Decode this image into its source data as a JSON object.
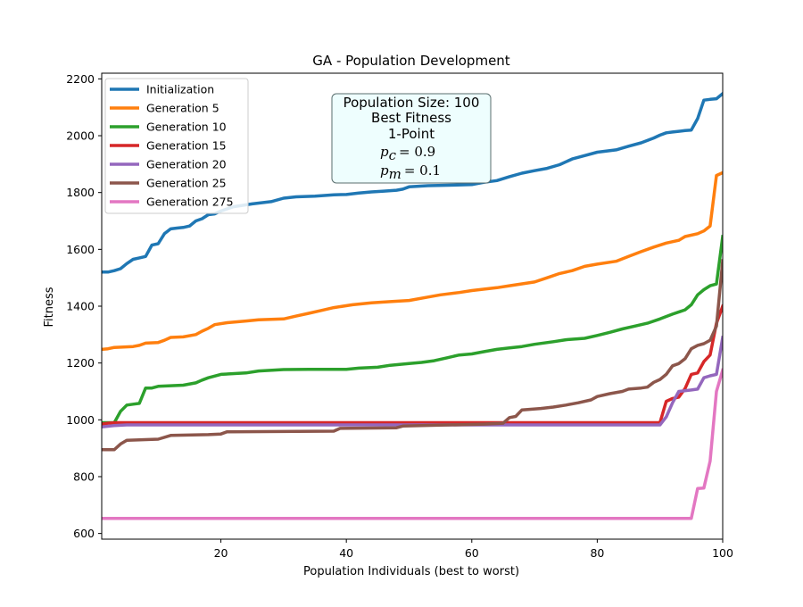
{
  "chart_data": {
    "type": "line",
    "title": "GA - Population Development",
    "xlabel": "Population Individuals (best to worst)",
    "ylabel": "Fitness",
    "xlim": [
      1,
      100
    ],
    "ylim": [
      580,
      2220
    ],
    "xticks": [
      20,
      40,
      60,
      80,
      100
    ],
    "yticks": [
      600,
      800,
      1000,
      1200,
      1400,
      1600,
      1800,
      2000,
      2200
    ],
    "grid": false,
    "legend_position": "upper-left",
    "annotation": {
      "lines": [
        "Population Size: 100",
        "Best Fitness",
        "1-Point"
      ],
      "pc_label": "p",
      "pc_sub": "c",
      "pc_value": "= 0.9",
      "pm_label": "p",
      "pm_sub": "m",
      "pm_value": "= 0.1",
      "background": "#eefefe"
    },
    "series": [
      {
        "name": "Initialization",
        "color": "#1f77b4",
        "points": [
          [
            1,
            1520
          ],
          [
            2,
            1520
          ],
          [
            3,
            1525
          ],
          [
            4,
            1532
          ],
          [
            5,
            1550
          ],
          [
            6,
            1565
          ],
          [
            7,
            1570
          ],
          [
            8,
            1575
          ],
          [
            9,
            1615
          ],
          [
            10,
            1620
          ],
          [
            11,
            1655
          ],
          [
            12,
            1672
          ],
          [
            13,
            1675
          ],
          [
            14,
            1677
          ],
          [
            15,
            1682
          ],
          [
            16,
            1700
          ],
          [
            17,
            1708
          ],
          [
            18,
            1722
          ],
          [
            19,
            1725
          ],
          [
            20,
            1735
          ],
          [
            22,
            1750
          ],
          [
            25,
            1760
          ],
          [
            28,
            1768
          ],
          [
            30,
            1780
          ],
          [
            32,
            1785
          ],
          [
            35,
            1787
          ],
          [
            38,
            1792
          ],
          [
            40,
            1793
          ],
          [
            42,
            1798
          ],
          [
            44,
            1802
          ],
          [
            46,
            1805
          ],
          [
            48,
            1808
          ],
          [
            49,
            1812
          ],
          [
            50,
            1820
          ],
          [
            53,
            1824
          ],
          [
            57,
            1826
          ],
          [
            60,
            1828
          ],
          [
            62,
            1836
          ],
          [
            64,
            1842
          ],
          [
            66,
            1856
          ],
          [
            68,
            1868
          ],
          [
            70,
            1877
          ],
          [
            72,
            1885
          ],
          [
            74,
            1898
          ],
          [
            76,
            1918
          ],
          [
            78,
            1930
          ],
          [
            80,
            1942
          ],
          [
            83,
            1950
          ],
          [
            85,
            1963
          ],
          [
            87,
            1975
          ],
          [
            89,
            1992
          ],
          [
            90,
            2002
          ],
          [
            91,
            2010
          ],
          [
            92,
            2013
          ],
          [
            94,
            2018
          ],
          [
            95,
            2020
          ],
          [
            96,
            2060
          ],
          [
            97,
            2125
          ],
          [
            98,
            2128
          ],
          [
            99,
            2130
          ],
          [
            100,
            2148
          ]
        ]
      },
      {
        "name": "Generation 5",
        "color": "#ff7f0e",
        "points": [
          [
            1,
            1248
          ],
          [
            2,
            1250
          ],
          [
            3,
            1255
          ],
          [
            6,
            1258
          ],
          [
            7,
            1262
          ],
          [
            8,
            1270
          ],
          [
            10,
            1272
          ],
          [
            11,
            1280
          ],
          [
            12,
            1290
          ],
          [
            14,
            1292
          ],
          [
            16,
            1300
          ],
          [
            17,
            1312
          ],
          [
            18,
            1322
          ],
          [
            19,
            1335
          ],
          [
            21,
            1342
          ],
          [
            24,
            1348
          ],
          [
            26,
            1352
          ],
          [
            30,
            1355
          ],
          [
            32,
            1365
          ],
          [
            34,
            1375
          ],
          [
            36,
            1385
          ],
          [
            38,
            1395
          ],
          [
            41,
            1405
          ],
          [
            44,
            1412
          ],
          [
            47,
            1416
          ],
          [
            50,
            1420
          ],
          [
            53,
            1432
          ],
          [
            55,
            1440
          ],
          [
            58,
            1448
          ],
          [
            60,
            1455
          ],
          [
            64,
            1465
          ],
          [
            66,
            1472
          ],
          [
            70,
            1485
          ],
          [
            72,
            1500
          ],
          [
            74,
            1515
          ],
          [
            76,
            1525
          ],
          [
            78,
            1540
          ],
          [
            80,
            1548
          ],
          [
            83,
            1558
          ],
          [
            85,
            1575
          ],
          [
            87,
            1592
          ],
          [
            89,
            1608
          ],
          [
            91,
            1622
          ],
          [
            93,
            1632
          ],
          [
            94,
            1645
          ],
          [
            96,
            1655
          ],
          [
            97,
            1665
          ],
          [
            98,
            1682
          ],
          [
            99,
            1860
          ],
          [
            100,
            1870
          ]
        ]
      },
      {
        "name": "Generation 10",
        "color": "#2ca02c",
        "points": [
          [
            1,
            990
          ],
          [
            3,
            990
          ],
          [
            4,
            1030
          ],
          [
            5,
            1052
          ],
          [
            6,
            1055
          ],
          [
            7,
            1058
          ],
          [
            8,
            1112
          ],
          [
            9,
            1112
          ],
          [
            10,
            1118
          ],
          [
            14,
            1122
          ],
          [
            16,
            1130
          ],
          [
            17,
            1140
          ],
          [
            18,
            1148
          ],
          [
            20,
            1160
          ],
          [
            24,
            1165
          ],
          [
            26,
            1172
          ],
          [
            30,
            1177
          ],
          [
            34,
            1178
          ],
          [
            40,
            1178
          ],
          [
            42,
            1182
          ],
          [
            45,
            1185
          ],
          [
            47,
            1192
          ],
          [
            50,
            1198
          ],
          [
            52,
            1202
          ],
          [
            54,
            1208
          ],
          [
            56,
            1218
          ],
          [
            58,
            1228
          ],
          [
            60,
            1232
          ],
          [
            62,
            1240
          ],
          [
            64,
            1248
          ],
          [
            66,
            1253
          ],
          [
            68,
            1258
          ],
          [
            70,
            1266
          ],
          [
            73,
            1275
          ],
          [
            75,
            1282
          ],
          [
            78,
            1287
          ],
          [
            80,
            1297
          ],
          [
            82,
            1308
          ],
          [
            84,
            1320
          ],
          [
            86,
            1330
          ],
          [
            88,
            1340
          ],
          [
            90,
            1355
          ],
          [
            92,
            1372
          ],
          [
            94,
            1387
          ],
          [
            95,
            1405
          ],
          [
            96,
            1440
          ],
          [
            97,
            1458
          ],
          [
            98,
            1472
          ],
          [
            99,
            1478
          ],
          [
            100,
            1645
          ]
        ]
      },
      {
        "name": "Generation 15",
        "color": "#d62728",
        "points": [
          [
            1,
            985
          ],
          [
            2,
            988
          ],
          [
            3,
            990
          ],
          [
            90,
            990
          ],
          [
            91,
            1065
          ],
          [
            92,
            1075
          ],
          [
            93,
            1080
          ],
          [
            94,
            1110
          ],
          [
            95,
            1160
          ],
          [
            96,
            1165
          ],
          [
            97,
            1205
          ],
          [
            98,
            1228
          ],
          [
            99,
            1340
          ],
          [
            100,
            1400
          ]
        ]
      },
      {
        "name": "Generation 20",
        "color": "#9467bd",
        "points": [
          [
            1,
            975
          ],
          [
            3,
            980
          ],
          [
            5,
            982
          ],
          [
            90,
            982
          ],
          [
            91,
            1010
          ],
          [
            92,
            1060
          ],
          [
            93,
            1100
          ],
          [
            95,
            1105
          ],
          [
            96,
            1108
          ],
          [
            97,
            1148
          ],
          [
            98,
            1155
          ],
          [
            99,
            1160
          ],
          [
            100,
            1290
          ]
        ]
      },
      {
        "name": "Generation 25",
        "color": "#8c564b",
        "points": [
          [
            1,
            895
          ],
          [
            3,
            895
          ],
          [
            4,
            915
          ],
          [
            5,
            928
          ],
          [
            10,
            932
          ],
          [
            12,
            945
          ],
          [
            18,
            948
          ],
          [
            20,
            950
          ],
          [
            21,
            958
          ],
          [
            38,
            960
          ],
          [
            39,
            970
          ],
          [
            48,
            972
          ],
          [
            49,
            978
          ],
          [
            62,
            985
          ],
          [
            65,
            988
          ],
          [
            66,
            1008
          ],
          [
            67,
            1012
          ],
          [
            68,
            1035
          ],
          [
            71,
            1040
          ],
          [
            73,
            1045
          ],
          [
            75,
            1052
          ],
          [
            77,
            1060
          ],
          [
            79,
            1070
          ],
          [
            80,
            1082
          ],
          [
            82,
            1092
          ],
          [
            84,
            1100
          ],
          [
            85,
            1108
          ],
          [
            87,
            1112
          ],
          [
            88,
            1115
          ],
          [
            89,
            1132
          ],
          [
            90,
            1142
          ],
          [
            91,
            1160
          ],
          [
            92,
            1190
          ],
          [
            93,
            1198
          ],
          [
            94,
            1215
          ],
          [
            95,
            1250
          ],
          [
            96,
            1262
          ],
          [
            97,
            1268
          ],
          [
            98,
            1280
          ],
          [
            99,
            1330
          ],
          [
            100,
            1560
          ]
        ]
      },
      {
        "name": "Generation 275",
        "color": "#e377c2",
        "points": [
          [
            1,
            653
          ],
          [
            95,
            653
          ],
          [
            96,
            758
          ],
          [
            97,
            760
          ],
          [
            98,
            855
          ],
          [
            99,
            1100
          ],
          [
            100,
            1175
          ]
        ]
      }
    ]
  }
}
